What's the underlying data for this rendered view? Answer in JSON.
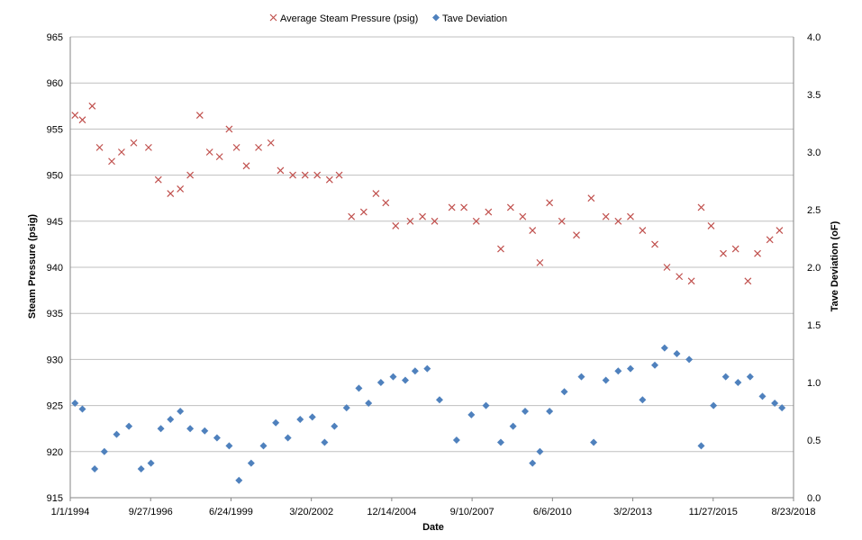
{
  "chart_data": {
    "type": "scatter",
    "title": "",
    "xlabel": "Date",
    "ylabel_left": "Steam Pressure (psig)",
    "ylabel_right": "Tave Deviation (oF)",
    "x_ticks": [
      "1/1/1994",
      "9/27/1996",
      "6/24/1999",
      "3/20/2002",
      "12/14/2004",
      "9/10/2007",
      "6/6/2010",
      "3/2/2013",
      "11/27/2015",
      "8/23/2018"
    ],
    "xlim": [
      "1994-01-01",
      "2018-08-23"
    ],
    "ylim_left": [
      915,
      965
    ],
    "yticks_left": [
      "915",
      "920",
      "925",
      "930",
      "935",
      "940",
      "945",
      "950",
      "955",
      "960",
      "965"
    ],
    "ylim_right": [
      0.0,
      4.0
    ],
    "yticks_right": [
      "0.0",
      "0.5",
      "1.0",
      "1.5",
      "2.0",
      "2.5",
      "3.0",
      "3.5",
      "4.0"
    ],
    "grid": "horizontal",
    "legend_position": "top-center",
    "colors": {
      "pressure": "#c0504d",
      "tave": "#4f81bd",
      "grid": "#bfbfbf",
      "axis": "#868686"
    },
    "series": [
      {
        "name": "Average Steam Pressure (psig)",
        "axis": "left",
        "marker": "x",
        "points": [
          [
            "1994-03-01",
            956.5
          ],
          [
            "1994-06-01",
            956.0
          ],
          [
            "1994-10-01",
            957.5
          ],
          [
            "1995-01-01",
            953.0
          ],
          [
            "1995-06-01",
            951.5
          ],
          [
            "1995-10-01",
            952.5
          ],
          [
            "1996-03-01",
            953.5
          ],
          [
            "1996-09-01",
            953.0
          ],
          [
            "1997-01-01",
            949.5
          ],
          [
            "1997-06-01",
            948.0
          ],
          [
            "1997-10-01",
            948.5
          ],
          [
            "1998-02-01",
            950.0
          ],
          [
            "1998-06-01",
            956.5
          ],
          [
            "1998-10-01",
            952.5
          ],
          [
            "1999-02-01",
            952.0
          ],
          [
            "1999-06-01",
            955.0
          ],
          [
            "1999-09-01",
            953.0
          ],
          [
            "2000-01-01",
            951.0
          ],
          [
            "2000-06-01",
            953.0
          ],
          [
            "2000-11-01",
            953.5
          ],
          [
            "2001-03-01",
            950.5
          ],
          [
            "2001-08-01",
            950.0
          ],
          [
            "2002-01-01",
            950.0
          ],
          [
            "2002-06-01",
            950.0
          ],
          [
            "2002-11-01",
            949.5
          ],
          [
            "2003-03-01",
            950.0
          ],
          [
            "2003-08-01",
            945.5
          ],
          [
            "2004-01-01",
            946.0
          ],
          [
            "2004-06-01",
            948.0
          ],
          [
            "2004-10-01",
            947.0
          ],
          [
            "2005-02-01",
            944.5
          ],
          [
            "2005-08-01",
            945.0
          ],
          [
            "2006-01-01",
            945.5
          ],
          [
            "2006-06-01",
            945.0
          ],
          [
            "2007-01-01",
            946.5
          ],
          [
            "2007-06-01",
            946.5
          ],
          [
            "2007-11-01",
            945.0
          ],
          [
            "2008-04-01",
            946.0
          ],
          [
            "2008-09-01",
            942.0
          ],
          [
            "2009-01-01",
            946.5
          ],
          [
            "2009-06-01",
            945.5
          ],
          [
            "2009-10-01",
            944.0
          ],
          [
            "2010-01-01",
            940.5
          ],
          [
            "2010-05-01",
            947.0
          ],
          [
            "2010-10-01",
            945.0
          ],
          [
            "2011-04-01",
            943.5
          ],
          [
            "2011-10-01",
            947.5
          ],
          [
            "2012-04-01",
            945.5
          ],
          [
            "2012-09-01",
            945.0
          ],
          [
            "2013-02-01",
            945.5
          ],
          [
            "2013-07-01",
            944.0
          ],
          [
            "2013-12-01",
            942.5
          ],
          [
            "2014-05-01",
            940.0
          ],
          [
            "2014-10-01",
            939.0
          ],
          [
            "2015-03-01",
            938.5
          ],
          [
            "2015-07-01",
            946.5
          ],
          [
            "2015-11-01",
            944.5
          ],
          [
            "2016-04-01",
            941.5
          ],
          [
            "2016-09-01",
            942.0
          ],
          [
            "2017-02-01",
            938.5
          ],
          [
            "2017-06-01",
            941.5
          ],
          [
            "2017-11-01",
            943.0
          ],
          [
            "2018-03-01",
            944.0
          ]
        ]
      },
      {
        "name": "Tave Deviation",
        "axis": "right",
        "marker": "diamond",
        "points": [
          [
            "1994-03-01",
            0.82
          ],
          [
            "1994-06-01",
            0.77
          ],
          [
            "1994-11-01",
            0.25
          ],
          [
            "1995-03-01",
            0.4
          ],
          [
            "1995-08-01",
            0.55
          ],
          [
            "1996-01-01",
            0.62
          ],
          [
            "1996-06-01",
            0.25
          ],
          [
            "1996-10-01",
            0.3
          ],
          [
            "1997-02-01",
            0.6
          ],
          [
            "1997-06-01",
            0.68
          ],
          [
            "1997-10-01",
            0.75
          ],
          [
            "1998-02-01",
            0.6
          ],
          [
            "1998-08-01",
            0.58
          ],
          [
            "1999-01-01",
            0.52
          ],
          [
            "1999-06-01",
            0.45
          ],
          [
            "1999-10-01",
            0.15
          ],
          [
            "2000-03-01",
            0.3
          ],
          [
            "2000-08-01",
            0.45
          ],
          [
            "2001-01-01",
            0.65
          ],
          [
            "2001-06-01",
            0.52
          ],
          [
            "2001-11-01",
            0.68
          ],
          [
            "2002-04-01",
            0.7
          ],
          [
            "2002-09-01",
            0.48
          ],
          [
            "2003-01-01",
            0.62
          ],
          [
            "2003-06-01",
            0.78
          ],
          [
            "2003-11-01",
            0.95
          ],
          [
            "2004-03-01",
            0.82
          ],
          [
            "2004-08-01",
            1.0
          ],
          [
            "2005-01-01",
            1.05
          ],
          [
            "2005-06-01",
            1.02
          ],
          [
            "2005-10-01",
            1.1
          ],
          [
            "2006-03-01",
            1.12
          ],
          [
            "2006-08-01",
            0.85
          ],
          [
            "2007-03-01",
            0.5
          ],
          [
            "2007-09-01",
            0.72
          ],
          [
            "2008-03-01",
            0.8
          ],
          [
            "2008-09-01",
            0.48
          ],
          [
            "2009-02-01",
            0.62
          ],
          [
            "2009-07-01",
            0.75
          ],
          [
            "2009-10-01",
            0.3
          ],
          [
            "2010-01-01",
            0.4
          ],
          [
            "2010-05-01",
            0.75
          ],
          [
            "2010-11-01",
            0.92
          ],
          [
            "2011-06-01",
            1.05
          ],
          [
            "2011-11-01",
            0.48
          ],
          [
            "2012-04-01",
            1.02
          ],
          [
            "2012-09-01",
            1.1
          ],
          [
            "2013-02-01",
            1.12
          ],
          [
            "2013-07-01",
            0.85
          ],
          [
            "2013-12-01",
            1.15
          ],
          [
            "2014-04-01",
            1.3
          ],
          [
            "2014-09-01",
            1.25
          ],
          [
            "2015-02-01",
            1.2
          ],
          [
            "2015-07-01",
            0.45
          ],
          [
            "2015-12-01",
            0.8
          ],
          [
            "2016-05-01",
            1.05
          ],
          [
            "2016-10-01",
            1.0
          ],
          [
            "2017-03-01",
            1.05
          ],
          [
            "2017-08-01",
            0.88
          ],
          [
            "2018-01-01",
            0.82
          ],
          [
            "2018-04-01",
            0.78
          ]
        ]
      }
    ]
  }
}
